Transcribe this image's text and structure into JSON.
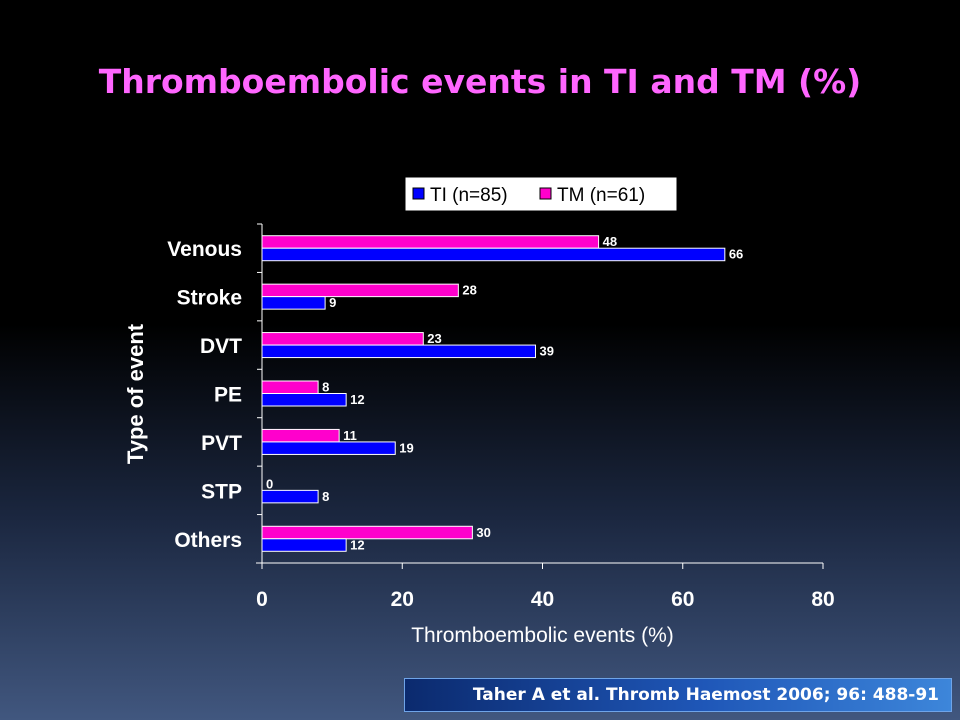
{
  "title": "Thromboembolic events in TI and TM (%)",
  "citation": "Taher A et al. Thromb Haemost 2006; 96: 488-91",
  "colors": {
    "ti": "#0000ff",
    "tm": "#ff00cc",
    "title": "#ff66ff"
  },
  "chart_data": {
    "type": "bar",
    "orientation": "horizontal",
    "xlabel": "Thromboembolic events (%)",
    "ylabel": "Type of event",
    "xlim": [
      0,
      80
    ],
    "xticks": [
      0,
      20,
      40,
      60,
      80
    ],
    "categories": [
      "Venous",
      "Stroke",
      "DVT",
      "PE",
      "PVT",
      "STP",
      "Others"
    ],
    "series": [
      {
        "name": "TI (n=85)",
        "color": "#0000ff",
        "values": [
          66,
          9,
          39,
          12,
          19,
          8,
          12
        ]
      },
      {
        "name": "TM (n=61)",
        "color": "#ff00cc",
        "values": [
          48,
          28,
          23,
          8,
          11,
          0,
          30
        ]
      }
    ],
    "legend": "top",
    "grid": false
  }
}
